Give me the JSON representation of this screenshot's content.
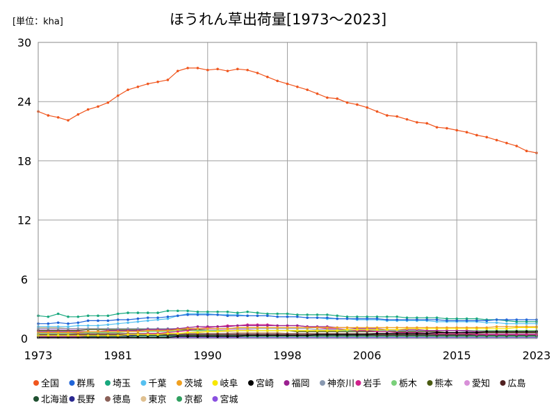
{
  "chart_data": {
    "type": "line",
    "title": "ほうれん草出荷量[1973〜2023]",
    "unit_label": "[単位：kha]",
    "xlabel": "",
    "ylabel": "",
    "xlim": [
      1973,
      2023
    ],
    "ylim": [
      0,
      30
    ],
    "x_ticks": [
      1973,
      1981,
      1990,
      1998,
      2006,
      2015,
      2023
    ],
    "y_ticks": [
      0,
      6,
      12,
      18,
      24,
      30
    ],
    "grid": true,
    "legend_position": "bottom",
    "x": [
      1973,
      1974,
      1975,
      1976,
      1977,
      1978,
      1979,
      1980,
      1981,
      1982,
      1983,
      1984,
      1985,
      1986,
      1987,
      1988,
      1989,
      1990,
      1991,
      1992,
      1993,
      1994,
      1995,
      1996,
      1997,
      1998,
      1999,
      2000,
      2001,
      2002,
      2003,
      2004,
      2005,
      2006,
      2007,
      2008,
      2009,
      2010,
      2011,
      2012,
      2013,
      2014,
      2015,
      2016,
      2017,
      2018,
      2019,
      2020,
      2021,
      2022,
      2023
    ],
    "series": [
      {
        "name": "全国",
        "color": "#f0561e",
        "values": [
          23.0,
          22.6,
          22.4,
          22.1,
          22.7,
          23.2,
          23.5,
          23.9,
          24.6,
          25.2,
          25.5,
          25.8,
          26.0,
          26.2,
          27.1,
          27.4,
          27.4,
          27.2,
          27.3,
          27.1,
          27.3,
          27.2,
          26.9,
          26.5,
          26.1,
          25.8,
          25.5,
          25.2,
          24.8,
          24.4,
          24.3,
          23.9,
          23.7,
          23.4,
          23.0,
          22.6,
          22.5,
          22.2,
          21.9,
          21.8,
          21.4,
          21.3,
          21.1,
          20.9,
          20.6,
          20.4,
          20.1,
          19.8,
          19.5,
          19.0,
          18.8
        ]
      },
      {
        "name": "群馬",
        "color": "#2065d8",
        "values": [
          1.5,
          1.5,
          1.6,
          1.5,
          1.6,
          1.8,
          1.8,
          1.8,
          1.9,
          1.9,
          2.0,
          2.1,
          2.1,
          2.2,
          2.3,
          2.4,
          2.4,
          2.4,
          2.4,
          2.3,
          2.3,
          2.3,
          2.3,
          2.3,
          2.2,
          2.2,
          2.2,
          2.1,
          2.1,
          2.1,
          2.0,
          2.0,
          2.0,
          2.0,
          2.0,
          1.9,
          1.9,
          1.9,
          1.9,
          1.9,
          1.9,
          1.8,
          1.8,
          1.8,
          1.8,
          1.8,
          1.9,
          1.9,
          1.9,
          1.9,
          1.9
        ]
      },
      {
        "name": "埼玉",
        "color": "#18a87e",
        "values": [
          2.3,
          2.2,
          2.5,
          2.2,
          2.2,
          2.3,
          2.3,
          2.3,
          2.5,
          2.6,
          2.6,
          2.6,
          2.6,
          2.8,
          2.8,
          2.8,
          2.7,
          2.7,
          2.7,
          2.7,
          2.6,
          2.7,
          2.6,
          2.5,
          2.5,
          2.5,
          2.4,
          2.4,
          2.4,
          2.4,
          2.3,
          2.2,
          2.2,
          2.2,
          2.2,
          2.2,
          2.2,
          2.1,
          2.1,
          2.1,
          2.1,
          2.0,
          2.0,
          2.0,
          2.0,
          1.9,
          1.9,
          1.8,
          1.7,
          1.7,
          1.7
        ]
      },
      {
        "name": "千葉",
        "color": "#55c0f0",
        "values": [
          1.2,
          1.2,
          1.2,
          1.2,
          1.3,
          1.3,
          1.3,
          1.4,
          1.5,
          1.6,
          1.7,
          1.8,
          1.9,
          2.0,
          2.3,
          2.5,
          2.5,
          2.5,
          2.4,
          2.4,
          2.4,
          2.3,
          2.3,
          2.3,
          2.2,
          2.2,
          2.2,
          2.1,
          2.1,
          2.0,
          2.0,
          2.0,
          1.9,
          1.9,
          1.9,
          1.8,
          1.8,
          1.8,
          1.8,
          1.8,
          1.7,
          1.7,
          1.7,
          1.7,
          1.7,
          1.6,
          1.6,
          1.5,
          1.5,
          1.5,
          1.5
        ]
      },
      {
        "name": "茨城",
        "color": "#f0a020",
        "values": [
          0.6,
          0.6,
          0.6,
          0.6,
          0.6,
          0.7,
          0.7,
          0.7,
          0.7,
          0.7,
          0.7,
          0.8,
          0.8,
          0.8,
          0.9,
          1.0,
          1.0,
          1.0,
          1.0,
          1.0,
          1.1,
          1.1,
          1.1,
          1.1,
          1.1,
          1.1,
          1.1,
          1.1,
          1.1,
          1.1,
          1.1,
          1.1,
          1.1,
          1.1,
          1.1,
          1.1,
          1.1,
          1.1,
          1.1,
          1.1,
          1.1,
          1.1,
          1.1,
          1.1,
          1.1,
          1.1,
          1.2,
          1.2,
          1.2,
          1.2,
          1.2
        ]
      },
      {
        "name": "岐阜",
        "color": "#f8e800",
        "values": [
          0.3,
          0.3,
          0.3,
          0.3,
          0.3,
          0.3,
          0.3,
          0.3,
          0.3,
          0.4,
          0.4,
          0.4,
          0.4,
          0.5,
          0.5,
          0.6,
          0.6,
          0.7,
          0.7,
          0.8,
          0.8,
          0.8,
          0.8,
          0.8,
          0.8,
          0.8,
          0.8,
          0.8,
          0.8,
          0.8,
          0.8,
          0.9,
          0.9,
          0.9,
          0.9,
          0.9,
          0.9,
          1.0,
          1.0,
          1.0,
          1.0,
          1.0,
          1.0,
          1.0,
          1.0,
          1.0,
          1.0,
          1.0,
          1.1,
          1.1,
          1.1
        ]
      },
      {
        "name": "宮崎",
        "color": "#000000",
        "values": [
          0.1,
          0.1,
          0.1,
          0.1,
          0.1,
          0.1,
          0.1,
          0.1,
          0.1,
          0.1,
          0.1,
          0.1,
          0.1,
          0.1,
          0.2,
          0.2,
          0.2,
          0.2,
          0.2,
          0.2,
          0.2,
          0.3,
          0.3,
          0.3,
          0.3,
          0.3,
          0.3,
          0.3,
          0.4,
          0.4,
          0.4,
          0.4,
          0.4,
          0.4,
          0.5,
          0.5,
          0.5,
          0.5,
          0.5,
          0.5,
          0.6,
          0.6,
          0.6,
          0.6,
          0.6,
          0.7,
          0.7,
          0.7,
          0.7,
          0.7,
          0.7
        ]
      },
      {
        "name": "福岡",
        "color": "#9a2090",
        "values": [
          0.7,
          0.7,
          0.7,
          0.7,
          0.7,
          0.7,
          0.7,
          0.8,
          0.8,
          0.8,
          0.8,
          0.9,
          0.9,
          0.9,
          1.0,
          1.1,
          1.2,
          1.2,
          1.2,
          1.2,
          1.3,
          1.3,
          1.3,
          1.3,
          1.3,
          1.3,
          1.3,
          1.2,
          1.2,
          1.2,
          1.1,
          1.1,
          1.0,
          1.0,
          1.0,
          0.9,
          0.9,
          0.9,
          0.9,
          0.8,
          0.8,
          0.8,
          0.8,
          0.8,
          0.7,
          0.7,
          0.7,
          0.7,
          0.7,
          0.7,
          0.7
        ]
      },
      {
        "name": "神奈川",
        "color": "#8898b0",
        "values": [
          1.0,
          1.0,
          1.0,
          1.0,
          1.0,
          1.0,
          1.0,
          1.0,
          1.0,
          1.0,
          1.0,
          1.0,
          1.0,
          1.0,
          1.0,
          1.0,
          1.0,
          1.0,
          1.0,
          1.0,
          1.0,
          1.0,
          1.0,
          1.0,
          1.0,
          1.0,
          1.0,
          1.0,
          0.9,
          0.9,
          0.9,
          0.9,
          0.9,
          0.9,
          0.9,
          0.8,
          0.8,
          0.8,
          0.8,
          0.8,
          0.8,
          0.8,
          0.8,
          0.7,
          0.7,
          0.7,
          0.7,
          0.7,
          0.7,
          0.7,
          0.7
        ]
      },
      {
        "name": "岩手",
        "color": "#d0208a",
        "values": [
          0.2,
          0.2,
          0.2,
          0.2,
          0.2,
          0.3,
          0.3,
          0.3,
          0.3,
          0.4,
          0.4,
          0.5,
          0.5,
          0.6,
          0.7,
          0.8,
          1.0,
          1.1,
          1.2,
          1.3,
          1.3,
          1.4,
          1.4,
          1.4,
          1.3,
          1.3,
          1.3,
          1.2,
          1.1,
          1.0,
          1.0,
          0.9,
          0.8,
          0.8,
          0.7,
          0.7,
          0.6,
          0.6,
          0.6,
          0.5,
          0.5,
          0.5,
          0.5,
          0.5,
          0.4,
          0.4,
          0.4,
          0.4,
          0.4,
          0.4,
          0.4
        ]
      },
      {
        "name": "栃木",
        "color": "#7ad07a",
        "values": [
          0.5,
          0.5,
          0.5,
          0.5,
          0.6,
          0.6,
          0.6,
          0.6,
          0.6,
          0.7,
          0.7,
          0.7,
          0.7,
          0.7,
          0.8,
          0.8,
          0.8,
          0.8,
          0.8,
          0.8,
          0.8,
          0.8,
          0.8,
          0.8,
          0.8,
          0.8,
          0.8,
          0.8,
          0.8,
          0.8,
          0.8,
          0.8,
          0.8,
          0.8,
          0.8,
          0.8,
          0.8,
          0.8,
          0.8,
          0.8,
          0.8,
          0.8,
          0.8,
          0.8,
          0.8,
          0.8,
          0.8,
          0.8,
          0.8,
          0.8,
          0.8
        ]
      },
      {
        "name": "熊本",
        "color": "#4a5a10",
        "values": [
          0.8,
          0.8,
          0.8,
          0.8,
          0.8,
          0.9,
          0.9,
          0.9,
          0.9,
          0.9,
          0.9,
          0.9,
          0.9,
          0.9,
          0.9,
          0.9,
          0.9,
          0.8,
          0.8,
          0.8,
          0.8,
          0.8,
          0.8,
          0.8,
          0.8,
          0.8,
          0.7,
          0.7,
          0.7,
          0.7,
          0.7,
          0.7,
          0.7,
          0.7,
          0.7,
          0.7,
          0.7,
          0.7,
          0.7,
          0.7,
          0.7,
          0.6,
          0.6,
          0.6,
          0.6,
          0.6,
          0.6,
          0.6,
          0.6,
          0.6,
          0.6
        ]
      },
      {
        "name": "愛知",
        "color": "#d890d8",
        "values": [
          0.9,
          0.9,
          0.9,
          0.9,
          0.9,
          0.9,
          0.9,
          0.9,
          0.9,
          0.9,
          0.9,
          0.9,
          0.9,
          0.9,
          0.9,
          0.9,
          0.9,
          0.9,
          0.9,
          0.9,
          0.9,
          0.9,
          0.8,
          0.8,
          0.8,
          0.8,
          0.8,
          0.8,
          0.8,
          0.8,
          0.7,
          0.7,
          0.7,
          0.7,
          0.7,
          0.7,
          0.7,
          0.6,
          0.6,
          0.6,
          0.6,
          0.6,
          0.6,
          0.6,
          0.6,
          0.5,
          0.5,
          0.5,
          0.5,
          0.5,
          0.5
        ]
      },
      {
        "name": "広島",
        "color": "#502020",
        "values": [
          0.4,
          0.4,
          0.4,
          0.4,
          0.4,
          0.4,
          0.4,
          0.4,
          0.4,
          0.4,
          0.4,
          0.4,
          0.4,
          0.4,
          0.4,
          0.4,
          0.4,
          0.4,
          0.4,
          0.4,
          0.4,
          0.4,
          0.4,
          0.4,
          0.4,
          0.4,
          0.4,
          0.4,
          0.4,
          0.4,
          0.4,
          0.4,
          0.4,
          0.4,
          0.4,
          0.4,
          0.4,
          0.4,
          0.4,
          0.4,
          0.4,
          0.4,
          0.4,
          0.4,
          0.4,
          0.4,
          0.4,
          0.4,
          0.4,
          0.4,
          0.4
        ]
      },
      {
        "name": "北海道",
        "color": "#1f5030",
        "values": [
          0.2,
          0.2,
          0.2,
          0.2,
          0.2,
          0.2,
          0.2,
          0.2,
          0.2,
          0.2,
          0.3,
          0.3,
          0.3,
          0.3,
          0.3,
          0.3,
          0.3,
          0.3,
          0.3,
          0.3,
          0.3,
          0.3,
          0.3,
          0.3,
          0.3,
          0.3,
          0.3,
          0.3,
          0.3,
          0.3,
          0.3,
          0.3,
          0.3,
          0.3,
          0.3,
          0.3,
          0.3,
          0.3,
          0.3,
          0.3,
          0.3,
          0.3,
          0.3,
          0.3,
          0.3,
          0.3,
          0.3,
          0.3,
          0.3,
          0.3,
          0.3
        ]
      },
      {
        "name": "長野",
        "color": "#2a2890",
        "values": [
          0.3,
          0.3,
          0.3,
          0.3,
          0.3,
          0.3,
          0.3,
          0.3,
          0.3,
          0.3,
          0.3,
          0.3,
          0.3,
          0.3,
          0.3,
          0.3,
          0.3,
          0.3,
          0.3,
          0.3,
          0.3,
          0.3,
          0.3,
          0.3,
          0.3,
          0.3,
          0.3,
          0.3,
          0.3,
          0.3,
          0.3,
          0.3,
          0.3,
          0.3,
          0.3,
          0.3,
          0.3,
          0.3,
          0.3,
          0.3,
          0.3,
          0.3,
          0.3,
          0.3,
          0.3,
          0.3,
          0.3,
          0.3,
          0.3,
          0.3,
          0.3
        ]
      },
      {
        "name": "徳島",
        "color": "#8a6058",
        "values": [
          0.5,
          0.5,
          0.5,
          0.5,
          0.5,
          0.5,
          0.5,
          0.5,
          0.5,
          0.5,
          0.5,
          0.5,
          0.5,
          0.5,
          0.5,
          0.5,
          0.5,
          0.5,
          0.5,
          0.5,
          0.5,
          0.5,
          0.5,
          0.5,
          0.5,
          0.5,
          0.5,
          0.5,
          0.5,
          0.5,
          0.5,
          0.5,
          0.5,
          0.5,
          0.5,
          0.5,
          0.5,
          0.5,
          0.5,
          0.5,
          0.5,
          0.5,
          0.5,
          0.5,
          0.5,
          0.5,
          0.5,
          0.5,
          0.5,
          0.5,
          0.5
        ]
      },
      {
        "name": "東京",
        "color": "#e0c090",
        "values": [
          1.1,
          1.1,
          1.1,
          1.0,
          1.0,
          1.0,
          1.0,
          0.9,
          0.9,
          0.9,
          0.9,
          0.9,
          0.8,
          0.8,
          0.8,
          0.8,
          0.7,
          0.7,
          0.7,
          0.7,
          0.6,
          0.6,
          0.6,
          0.6,
          0.6,
          0.5,
          0.5,
          0.5,
          0.5,
          0.5,
          0.4,
          0.4,
          0.4,
          0.4,
          0.4,
          0.4,
          0.4,
          0.3,
          0.3,
          0.3,
          0.3,
          0.3,
          0.3,
          0.3,
          0.3,
          0.3,
          0.3,
          0.3,
          0.3,
          0.3,
          0.3
        ]
      },
      {
        "name": "京都",
        "color": "#30a060",
        "values": [
          0.2,
          0.2,
          0.2,
          0.2,
          0.2,
          0.2,
          0.2,
          0.2,
          0.2,
          0.2,
          0.2,
          0.2,
          0.2,
          0.2,
          0.2,
          0.2,
          0.2,
          0.2,
          0.2,
          0.2,
          0.2,
          0.2,
          0.2,
          0.2,
          0.2,
          0.2,
          0.2,
          0.2,
          0.2,
          0.2,
          0.2,
          0.2,
          0.2,
          0.2,
          0.2,
          0.2,
          0.2,
          0.2,
          0.2,
          0.2,
          0.2,
          0.2,
          0.2,
          0.2,
          0.2,
          0.2,
          0.2,
          0.2,
          0.2,
          0.2,
          0.2
        ]
      },
      {
        "name": "宮城",
        "color": "#8a50e0",
        "values": [
          0.1,
          0.1,
          0.1,
          0.1,
          0.1,
          0.1,
          0.1,
          0.1,
          0.1,
          0.1,
          0.1,
          0.1,
          0.1,
          0.1,
          0.1,
          0.1,
          0.1,
          0.1,
          0.1,
          0.1,
          0.1,
          0.1,
          0.1,
          0.1,
          0.1,
          0.1,
          0.1,
          0.1,
          0.1,
          0.1,
          0.1,
          0.1,
          0.1,
          0.1,
          0.1,
          0.1,
          0.1,
          0.1,
          0.1,
          0.1,
          0.1,
          0.1,
          0.1,
          0.1,
          0.1,
          0.1,
          0.1,
          0.1,
          0.1,
          0.1,
          0.1
        ]
      }
    ]
  }
}
